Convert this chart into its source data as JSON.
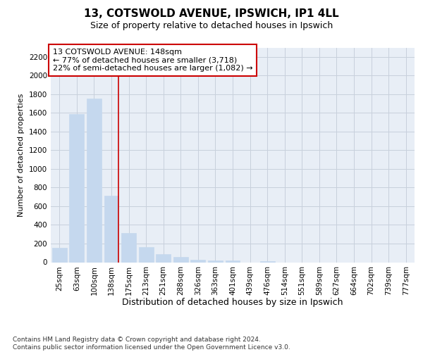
{
  "title": "13, COTSWOLD AVENUE, IPSWICH, IP1 4LL",
  "subtitle": "Size of property relative to detached houses in Ipswich",
  "xlabel": "Distribution of detached houses by size in Ipswich",
  "ylabel": "Number of detached properties",
  "categories": [
    "25sqm",
    "63sqm",
    "100sqm",
    "138sqm",
    "175sqm",
    "213sqm",
    "251sqm",
    "288sqm",
    "326sqm",
    "363sqm",
    "401sqm",
    "439sqm",
    "476sqm",
    "514sqm",
    "551sqm",
    "589sqm",
    "627sqm",
    "664sqm",
    "702sqm",
    "739sqm",
    "777sqm"
  ],
  "values": [
    155,
    1590,
    1755,
    710,
    315,
    160,
    90,
    55,
    30,
    20,
    20,
    0,
    15,
    0,
    0,
    0,
    0,
    0,
    0,
    0,
    0
  ],
  "bar_color": "#c5d8ee",
  "bar_edge_color": "#c5d8ee",
  "vline_color": "#cc0000",
  "annotation_text": "13 COTSWOLD AVENUE: 148sqm\n← 77% of detached houses are smaller (3,718)\n22% of semi-detached houses are larger (1,082) →",
  "annotation_box_color": "#ffffff",
  "annotation_box_edge": "#cc0000",
  "ylim": [
    0,
    2300
  ],
  "yticks": [
    0,
    200,
    400,
    600,
    800,
    1000,
    1200,
    1400,
    1600,
    1800,
    2000,
    2200
  ],
  "grid_color": "#c8d0dc",
  "bg_color": "#e8eef6",
  "footer": "Contains HM Land Registry data © Crown copyright and database right 2024.\nContains public sector information licensed under the Open Government Licence v3.0.",
  "title_fontsize": 11,
  "subtitle_fontsize": 9,
  "xlabel_fontsize": 9,
  "ylabel_fontsize": 8,
  "tick_fontsize": 7.5,
  "annotation_fontsize": 8,
  "footer_fontsize": 6.5
}
